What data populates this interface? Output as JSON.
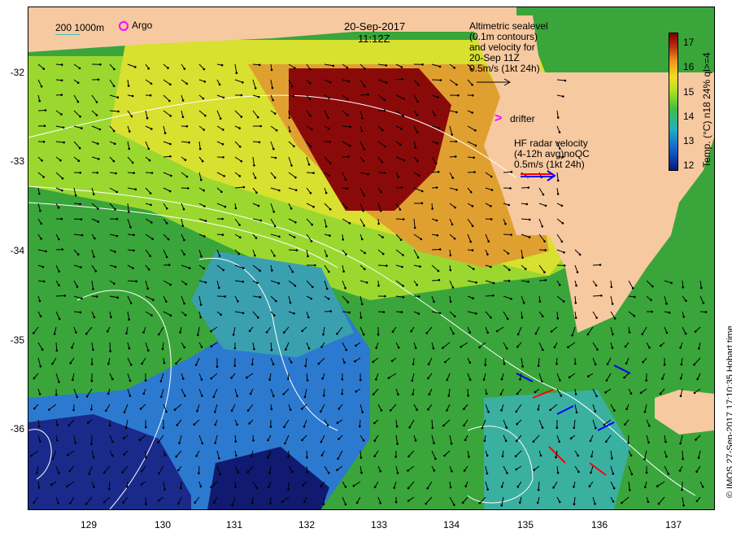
{
  "title": {
    "date": "20-Sep-2017",
    "time": "11:12Z"
  },
  "legend": {
    "isobath_200": "200",
    "isobath_1000": "1000m",
    "argo": "Argo",
    "drifter": "drifter",
    "altimetry_lines": [
      "Altimetric sealevel",
      "(0.1m contours)",
      "and velocity for",
      "20-Sep 11Z",
      "0.5m/s (1kt 24h)"
    ],
    "hf_radar_lines": [
      "HF radar velocity",
      "(4-12h avg)noQC",
      "0.5m/s (1kt 24h)"
    ]
  },
  "axes": {
    "x_ticks": [
      "129",
      "130",
      "131",
      "132",
      "133",
      "134",
      "135",
      "136",
      "137"
    ],
    "y_ticks": [
      "-32",
      "-33",
      "-34",
      "-35",
      "-36"
    ]
  },
  "colorbar": {
    "title": "Temp. (°C) n18 24% ql>=4",
    "ticks": [
      "17",
      "16",
      "15",
      "14",
      "13",
      "12"
    ],
    "range": [
      12,
      17.5
    ]
  },
  "credit": "© IMOS 27-Sep-2017 17:10:35 Hobart time",
  "colors": {
    "land": "#f7c9a0",
    "argo": "#ff00ff",
    "drifter": "#ff00ff",
    "hf_radar_red": "#ff0000",
    "hf_radar_blue": "#0000ff",
    "contour": "#ffffff"
  }
}
